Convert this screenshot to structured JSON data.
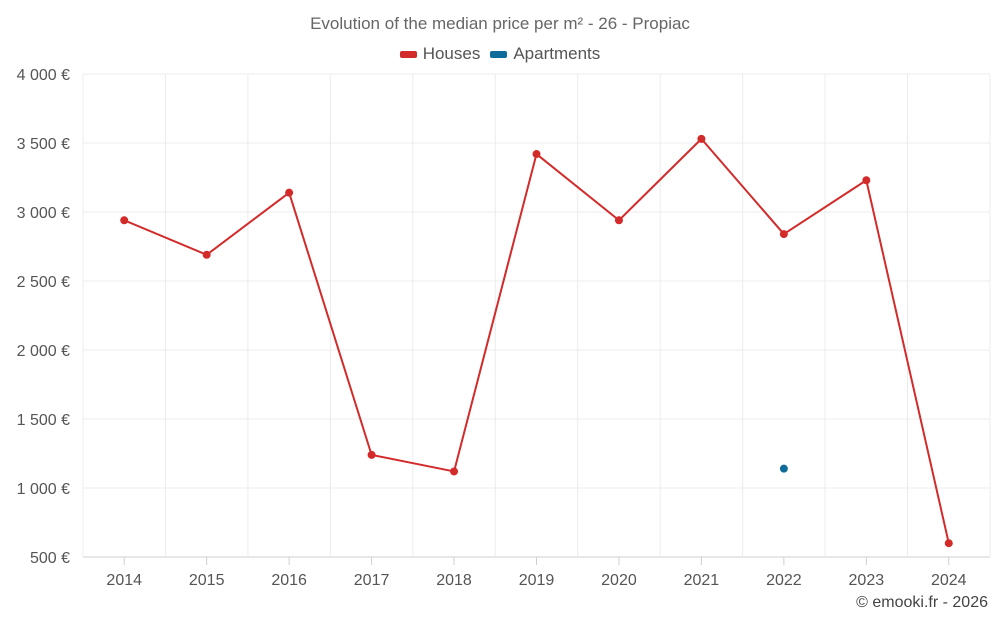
{
  "chart_data": {
    "type": "line",
    "title": "Evolution of the median price per m² - 26 - Propiac",
    "categories": [
      "2014",
      "2015",
      "2016",
      "2017",
      "2018",
      "2019",
      "2020",
      "2021",
      "2022",
      "2023",
      "2024"
    ],
    "y_tick_labels": [
      "500 €",
      "1 000 €",
      "1 500 €",
      "2 000 €",
      "2 500 €",
      "3 000 €",
      "3 500 €",
      "4 000 €"
    ],
    "y_ticks": [
      500,
      1000,
      1500,
      2000,
      2500,
      3000,
      3500,
      4000
    ],
    "ylim": [
      500,
      4000
    ],
    "xlabel": "",
    "ylabel": "",
    "grid": true,
    "legend_position": "top-center",
    "series": [
      {
        "name": "Houses",
        "color": "#d32a2a",
        "values": [
          2940,
          2690,
          3140,
          1240,
          1120,
          3420,
          2940,
          3530,
          2840,
          3230,
          600
        ]
      },
      {
        "name": "Apartments",
        "color": "#0f6b99",
        "values": [
          null,
          null,
          null,
          null,
          null,
          null,
          null,
          null,
          1140,
          null,
          null
        ]
      }
    ]
  },
  "footer": {
    "credit": "© emooki.fr - 2026"
  }
}
